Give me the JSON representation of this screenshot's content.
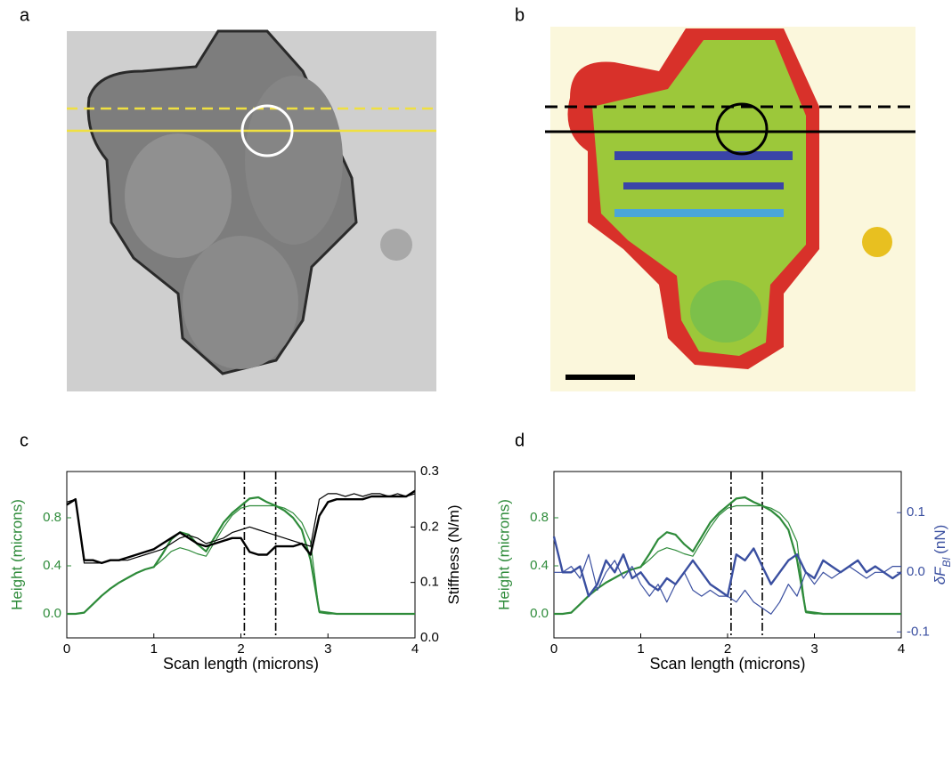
{
  "images": [
    {
      "label": "a"
    },
    {
      "label": "b"
    }
  ],
  "chart_data": [
    {
      "type": "line",
      "label": "c",
      "xlabel": "Scan length (microns)",
      "ylabel": "Height (microns)",
      "y2label": [
        "Stiffness (N/m)"
      ],
      "xlim": [
        0,
        4
      ],
      "xticks": [
        0,
        1,
        2,
        3,
        4
      ],
      "ylim": [
        -0.2,
        1.185
      ],
      "yticks": [
        {
          "value": 0,
          "label": "0.0"
        },
        0.4,
        0.8
      ],
      "y2lim": [
        0,
        0.3
      ],
      "y2ticks": [
        {
          "value": 0,
          "label": "0.0"
        },
        0.1,
        0.2,
        0.3
      ],
      "ycolor": "#2e8b3a",
      "y2color": "#000000",
      "vlines": [
        2.04,
        2.4
      ],
      "x": [
        0,
        0.1,
        0.2,
        0.3,
        0.4,
        0.5,
        0.6,
        0.7,
        0.8,
        0.9,
        1,
        1.1,
        1.2,
        1.3,
        1.4,
        1.5,
        1.6,
        1.7,
        1.8,
        1.9,
        2,
        2.1,
        2.2,
        2.3,
        2.4,
        2.5,
        2.6,
        2.7,
        2.8,
        2.9,
        3,
        3.1,
        3.2,
        3.3,
        3.4,
        3.5,
        3.6,
        3.7,
        3.8,
        3.9,
        4
      ],
      "series": [
        {
          "color": "#2e8b3a",
          "linewidth": 2.2,
          "values": [
            0,
            0,
            0.01,
            0.08,
            0.15,
            0.21,
            0.26,
            0.3,
            0.34,
            0.37,
            0.39,
            0.5,
            0.62,
            0.68,
            0.66,
            0.58,
            0.52,
            0.64,
            0.76,
            0.84,
            0.9,
            0.96,
            0.97,
            0.93,
            0.9,
            0.86,
            0.8,
            0.7,
            0.45,
            0.02,
            0.01,
            0,
            0,
            0,
            0,
            0,
            0,
            0,
            0,
            0,
            0
          ]
        },
        {
          "color": "#2e8b3a",
          "linewidth": 1.2,
          "values": [
            0,
            0,
            0.01,
            0.08,
            0.15,
            0.21,
            0.26,
            0.3,
            0.34,
            0.37,
            0.39,
            0.45,
            0.52,
            0.55,
            0.53,
            0.5,
            0.48,
            0.6,
            0.72,
            0.82,
            0.88,
            0.9,
            0.9,
            0.9,
            0.9,
            0.88,
            0.84,
            0.76,
            0.6,
            0.01,
            0,
            0,
            0,
            0,
            0,
            0,
            0,
            0,
            0,
            0,
            0
          ]
        },
        {
          "color": "#000000",
          "linewidth": 2.4,
          "axis": "y2",
          "values": [
            0.24,
            0.25,
            0.14,
            0.14,
            0.135,
            0.14,
            0.14,
            0.145,
            0.15,
            0.155,
            0.16,
            0.17,
            0.18,
            0.19,
            0.18,
            0.17,
            0.165,
            0.17,
            0.175,
            0.18,
            0.18,
            0.155,
            0.15,
            0.15,
            0.165,
            0.165,
            0.165,
            0.17,
            0.15,
            0.22,
            0.245,
            0.25,
            0.25,
            0.25,
            0.25,
            0.255,
            0.255,
            0.255,
            0.255,
            0.255,
            0.265
          ]
        },
        {
          "color": "#000000",
          "linewidth": 1.2,
          "axis": "y2",
          "values": [
            0.245,
            0.25,
            0.135,
            0.135,
            0.135,
            0.14,
            0.14,
            0.14,
            0.145,
            0.15,
            0.155,
            0.16,
            0.17,
            0.18,
            0.185,
            0.18,
            0.17,
            0.175,
            0.18,
            0.19,
            0.195,
            0.2,
            0.195,
            0.19,
            0.185,
            0.18,
            0.175,
            0.17,
            0.165,
            0.25,
            0.26,
            0.26,
            0.255,
            0.26,
            0.255,
            0.26,
            0.26,
            0.255,
            0.26,
            0.255,
            0.26
          ]
        }
      ]
    },
    {
      "type": "line",
      "label": "d",
      "xlabel": "Scan length (microns)",
      "ylabel": "Height (microns)",
      "y2label": [
        "δF",
        "Bl",
        "(nN)"
      ],
      "xlim": [
        0,
        4
      ],
      "xticks": [
        0,
        1,
        2,
        3,
        4
      ],
      "ylim": [
        -0.2,
        1.185
      ],
      "yticks": [
        {
          "value": 0,
          "label": "0.0"
        },
        0.4,
        0.8
      ],
      "y2lim": [
        -0.11,
        0.169
      ],
      "y2ticks": [
        -0.1,
        {
          "value": 0,
          "label": "0.0"
        },
        0.1
      ],
      "ycolor": "#2e8b3a",
      "y2color": "#3a4fa0",
      "vlines": [
        2.04,
        2.4
      ],
      "x": [
        0,
        0.1,
        0.2,
        0.3,
        0.4,
        0.5,
        0.6,
        0.7,
        0.8,
        0.9,
        1,
        1.1,
        1.2,
        1.3,
        1.4,
        1.5,
        1.6,
        1.7,
        1.8,
        1.9,
        2,
        2.1,
        2.2,
        2.3,
        2.4,
        2.5,
        2.6,
        2.7,
        2.8,
        2.9,
        3,
        3.1,
        3.2,
        3.3,
        3.4,
        3.5,
        3.6,
        3.7,
        3.8,
        3.9,
        4
      ],
      "series": [
        {
          "color": "#2e8b3a",
          "linewidth": 2.2,
          "values": [
            0,
            0,
            0.01,
            0.08,
            0.15,
            0.21,
            0.26,
            0.3,
            0.34,
            0.37,
            0.39,
            0.5,
            0.62,
            0.68,
            0.66,
            0.58,
            0.52,
            0.64,
            0.76,
            0.84,
            0.9,
            0.96,
            0.97,
            0.93,
            0.9,
            0.86,
            0.8,
            0.7,
            0.45,
            0.02,
            0.01,
            0,
            0,
            0,
            0,
            0,
            0,
            0,
            0,
            0,
            0
          ]
        },
        {
          "color": "#2e8b3a",
          "linewidth": 1.2,
          "values": [
            0,
            0,
            0.01,
            0.08,
            0.15,
            0.21,
            0.26,
            0.3,
            0.34,
            0.37,
            0.39,
            0.45,
            0.52,
            0.55,
            0.53,
            0.5,
            0.48,
            0.6,
            0.72,
            0.82,
            0.88,
            0.9,
            0.9,
            0.9,
            0.9,
            0.88,
            0.84,
            0.76,
            0.6,
            0.01,
            0,
            0,
            0,
            0,
            0,
            0,
            0,
            0,
            0,
            0,
            0
          ]
        },
        {
          "color": "#3a4fa0",
          "linewidth": 2.4,
          "axis": "y2",
          "values": [
            0.06,
            0,
            0,
            0.01,
            -0.04,
            -0.02,
            0.02,
            0,
            0.03,
            -0.01,
            0,
            -0.02,
            -0.03,
            -0.01,
            -0.02,
            0,
            0.02,
            0,
            -0.02,
            -0.03,
            -0.04,
            0.03,
            0.02,
            0.04,
            0.01,
            -0.02,
            0,
            0.02,
            0.03,
            0,
            -0.01,
            0.02,
            0.01,
            0,
            0.01,
            0.02,
            0,
            0.01,
            0,
            -0.01,
            0
          ]
        },
        {
          "color": "#3a4fa0",
          "linewidth": 1.2,
          "axis": "y2",
          "values": [
            0,
            0,
            0.01,
            -0.01,
            0.03,
            -0.03,
            0,
            0.02,
            -0.01,
            0.01,
            -0.02,
            -0.04,
            -0.02,
            -0.05,
            -0.02,
            0,
            -0.03,
            -0.04,
            -0.03,
            -0.04,
            -0.04,
            -0.05,
            -0.03,
            -0.05,
            -0.06,
            -0.07,
            -0.05,
            -0.02,
            -0.04,
            0,
            -0.02,
            0,
            -0.01,
            0,
            0.01,
            0,
            -0.01,
            0,
            0,
            0.01,
            0.01
          ]
        }
      ]
    }
  ]
}
